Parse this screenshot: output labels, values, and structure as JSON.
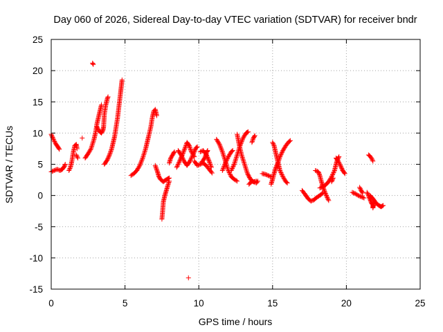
{
  "chart_data": {
    "type": "scatter",
    "title": "Day 060 of 2026, Sidereal Day-to-day VTEC variation (SDTVAR) for receiver bndr",
    "xlabel": "GPS time / hours",
    "ylabel": "SDTVAR / TECUs",
    "xlim": [
      0,
      25
    ],
    "ylim": [
      -15,
      25
    ],
    "x_ticks": [
      "0",
      "5",
      "10",
      "15",
      "20",
      "25"
    ],
    "y_ticks": [
      "25",
      "20",
      "15",
      "10",
      "5",
      "0",
      "-5",
      "-10",
      "-15"
    ],
    "grid": true,
    "marker": "+",
    "marker_color": "#ff0000",
    "segments": [
      {
        "points": [
          [
            0.0,
            3.8
          ],
          [
            0.2,
            4.0
          ],
          [
            0.4,
            4.2
          ],
          [
            0.6,
            4.0
          ],
          [
            0.75,
            4.2
          ],
          [
            0.9,
            4.7
          ],
          [
            0.95,
            5.0
          ]
        ]
      },
      {
        "points": [
          [
            0.0,
            9.8
          ],
          [
            0.15,
            9.0
          ],
          [
            0.3,
            8.3
          ],
          [
            0.45,
            7.8
          ],
          [
            0.55,
            7.4
          ]
        ]
      },
      {
        "points": [
          [
            1.2,
            4.0
          ],
          [
            1.3,
            4.5
          ],
          [
            1.4,
            5.5
          ],
          [
            1.5,
            7.0
          ],
          [
            1.6,
            8.0
          ],
          [
            1.7,
            8.2
          ],
          [
            1.75,
            7.5
          ]
        ]
      },
      {
        "points": [
          [
            1.7,
            6.5
          ],
          [
            1.8,
            6.0
          ]
        ]
      },
      {
        "points": [
          [
            2.1,
            9.2
          ]
        ]
      },
      {
        "points": [
          [
            2.8,
            21.2
          ],
          [
            2.85,
            21.0
          ]
        ]
      },
      {
        "points": [
          [
            2.3,
            6.0
          ],
          [
            2.5,
            6.7
          ],
          [
            2.7,
            7.5
          ],
          [
            2.9,
            9.0
          ],
          [
            3.0,
            10.0
          ],
          [
            3.1,
            11.5
          ],
          [
            3.2,
            12.5
          ],
          [
            3.3,
            13.5
          ],
          [
            3.4,
            14.5
          ]
        ]
      },
      {
        "points": [
          [
            3.1,
            11.0
          ],
          [
            3.2,
            10.5
          ],
          [
            3.3,
            10.2
          ],
          [
            3.4,
            10.0
          ],
          [
            3.5,
            10.4
          ],
          [
            3.55,
            11.0
          ],
          [
            3.6,
            13.0
          ],
          [
            3.7,
            14.5
          ],
          [
            3.8,
            15.5
          ],
          [
            3.85,
            15.8
          ]
        ]
      },
      {
        "points": [
          [
            3.6,
            5.0
          ],
          [
            3.8,
            5.7
          ],
          [
            3.95,
            6.5
          ],
          [
            4.1,
            7.5
          ],
          [
            4.2,
            8.5
          ],
          [
            4.3,
            9.5
          ],
          [
            4.4,
            11.0
          ],
          [
            4.5,
            12.5
          ],
          [
            4.6,
            14.5
          ],
          [
            4.7,
            16.5
          ],
          [
            4.75,
            17.5
          ],
          [
            4.8,
            18.5
          ]
        ]
      },
      {
        "points": [
          [
            5.4,
            3.2
          ],
          [
            5.6,
            3.5
          ],
          [
            5.8,
            4.0
          ],
          [
            6.0,
            4.8
          ],
          [
            6.2,
            6.0
          ],
          [
            6.4,
            7.5
          ],
          [
            6.5,
            8.5
          ],
          [
            6.6,
            9.5
          ],
          [
            6.75,
            11.0
          ],
          [
            6.85,
            12.5
          ],
          [
            6.95,
            13.5
          ],
          [
            7.05,
            13.8
          ],
          [
            7.15,
            12.8
          ]
        ]
      },
      {
        "points": [
          [
            7.05,
            4.8
          ],
          [
            7.2,
            3.8
          ],
          [
            7.3,
            3.0
          ],
          [
            7.4,
            2.6
          ],
          [
            7.5,
            2.4
          ],
          [
            7.6,
            2.2
          ],
          [
            7.7,
            2.4
          ],
          [
            7.85,
            2.6
          ],
          [
            8.0,
            2.8
          ]
        ]
      },
      {
        "points": [
          [
            7.5,
            -3.8
          ],
          [
            7.55,
            -2.5
          ],
          [
            7.6,
            -1.0
          ],
          [
            7.7,
            0.0
          ],
          [
            7.8,
            0.8
          ],
          [
            7.9,
            1.6
          ],
          [
            8.0,
            2.3
          ]
        ]
      },
      {
        "points": [
          [
            8.0,
            5.2
          ],
          [
            8.1,
            6.0
          ],
          [
            8.25,
            6.6
          ],
          [
            8.35,
            7.0
          ]
        ]
      },
      {
        "points": [
          [
            8.5,
            4.5
          ],
          [
            8.7,
            5.5
          ],
          [
            8.9,
            6.6
          ],
          [
            9.1,
            7.8
          ],
          [
            9.2,
            8.5
          ],
          [
            9.35,
            8.0
          ],
          [
            9.5,
            7.0
          ],
          [
            9.7,
            6.2
          ]
        ]
      },
      {
        "points": [
          [
            8.6,
            7.2
          ],
          [
            8.8,
            6.5
          ],
          [
            9.0,
            5.5
          ],
          [
            9.2,
            4.8
          ],
          [
            9.4,
            5.5
          ],
          [
            9.6,
            6.5
          ],
          [
            9.8,
            7.6
          ],
          [
            9.9,
            7.8
          ]
        ]
      },
      {
        "points": [
          [
            9.3,
            -13.2
          ]
        ]
      },
      {
        "points": [
          [
            9.7,
            5.5
          ],
          [
            9.9,
            4.8
          ],
          [
            10.1,
            5.0
          ],
          [
            10.3,
            5.2
          ],
          [
            10.5,
            4.8
          ],
          [
            10.7,
            4.2
          ],
          [
            10.9,
            3.6
          ]
        ]
      },
      {
        "points": [
          [
            10.1,
            7.0
          ],
          [
            10.3,
            7.2
          ],
          [
            10.5,
            6.6
          ],
          [
            10.7,
            5.5
          ],
          [
            10.85,
            4.5
          ]
        ]
      },
      {
        "points": [
          [
            10.2,
            5.3
          ],
          [
            10.4,
            6.0
          ],
          [
            10.55,
            7.0
          ],
          [
            10.6,
            7.2
          ]
        ]
      },
      {
        "points": [
          [
            11.2,
            9.0
          ],
          [
            11.4,
            8.2
          ],
          [
            11.6,
            7.0
          ],
          [
            11.8,
            5.5
          ],
          [
            12.0,
            4.0
          ],
          [
            12.2,
            3.0
          ],
          [
            12.4,
            2.6
          ],
          [
            12.6,
            2.3
          ]
        ]
      },
      {
        "points": [
          [
            11.6,
            4.0
          ],
          [
            11.8,
            5.2
          ],
          [
            12.0,
            6.2
          ],
          [
            12.2,
            7.0
          ],
          [
            12.3,
            7.2
          ]
        ]
      },
      {
        "points": [
          [
            12.2,
            4.0
          ],
          [
            12.4,
            5.0
          ],
          [
            12.6,
            6.5
          ],
          [
            12.8,
            8.0
          ],
          [
            13.0,
            9.2
          ],
          [
            13.2,
            10.0
          ],
          [
            13.35,
            10.2
          ]
        ]
      },
      {
        "points": [
          [
            12.6,
            9.8
          ],
          [
            12.75,
            8.0
          ],
          [
            12.9,
            6.5
          ],
          [
            13.1,
            5.0
          ],
          [
            13.3,
            3.5
          ],
          [
            13.5,
            2.6
          ],
          [
            13.7,
            2.2
          ],
          [
            13.9,
            2.3
          ]
        ]
      },
      {
        "points": [
          [
            13.4,
            1.8
          ],
          [
            13.6,
            2.3
          ],
          [
            13.9,
            2.0
          ],
          [
            14.0,
            2.3
          ]
        ]
      },
      {
        "points": [
          [
            13.6,
            8.5
          ],
          [
            13.7,
            9.2
          ],
          [
            13.8,
            9.6
          ]
        ]
      },
      {
        "points": [
          [
            14.3,
            3.5
          ],
          [
            14.5,
            3.4
          ],
          [
            14.7,
            3.2
          ],
          [
            14.9,
            3.0
          ]
        ]
      },
      {
        "points": [
          [
            15.0,
            8.5
          ],
          [
            15.1,
            8.0
          ],
          [
            15.2,
            7.0
          ],
          [
            15.3,
            6.0
          ],
          [
            15.4,
            5.0
          ],
          [
            15.5,
            4.0
          ],
          [
            15.7,
            3.0
          ],
          [
            15.9,
            2.2
          ],
          [
            16.0,
            2.0
          ]
        ]
      },
      {
        "points": [
          [
            14.9,
            1.8
          ],
          [
            15.0,
            2.6
          ],
          [
            15.1,
            3.5
          ],
          [
            15.2,
            4.3
          ],
          [
            15.3,
            4.9
          ],
          [
            15.4,
            5.5
          ],
          [
            15.5,
            6.2
          ],
          [
            15.7,
            7.2
          ],
          [
            15.9,
            8.0
          ],
          [
            16.1,
            8.6
          ],
          [
            16.2,
            8.8
          ]
        ]
      },
      {
        "points": [
          [
            17.0,
            0.8
          ],
          [
            17.2,
            0.2
          ],
          [
            17.4,
            -0.5
          ],
          [
            17.6,
            -0.9
          ],
          [
            17.8,
            -0.7
          ],
          [
            18.0,
            -0.3
          ],
          [
            18.2,
            0.0
          ],
          [
            18.4,
            0.4
          ]
        ]
      },
      {
        "points": [
          [
            17.9,
            4.0
          ],
          [
            18.1,
            3.8
          ],
          [
            18.2,
            3.2
          ],
          [
            18.3,
            2.3
          ],
          [
            18.4,
            1.5
          ],
          [
            18.55,
            0.5
          ],
          [
            18.7,
            -0.3
          ],
          [
            18.8,
            -0.8
          ]
        ]
      },
      {
        "points": [
          [
            18.2,
            1.2
          ],
          [
            18.4,
            1.4
          ],
          [
            18.6,
            1.7
          ],
          [
            18.8,
            2.2
          ],
          [
            19.0,
            3.0
          ],
          [
            19.2,
            4.0
          ],
          [
            19.3,
            5.0
          ],
          [
            19.4,
            5.8
          ],
          [
            19.5,
            6.2
          ]
        ]
      },
      {
        "points": [
          [
            19.0,
            2.2
          ],
          [
            19.1,
            2.8
          ]
        ]
      },
      {
        "points": [
          [
            19.3,
            6.0
          ],
          [
            19.45,
            5.5
          ],
          [
            19.6,
            4.8
          ],
          [
            19.75,
            4.0
          ],
          [
            19.9,
            3.5
          ]
        ]
      },
      {
        "points": [
          [
            20.4,
            0.5
          ],
          [
            20.6,
            0.3
          ],
          [
            20.8,
            0.0
          ],
          [
            21.0,
            -0.2
          ],
          [
            21.2,
            -0.4
          ]
        ]
      },
      {
        "points": [
          [
            20.9,
            1.3
          ],
          [
            21.0,
            0.8
          ],
          [
            21.1,
            0.4
          ]
        ]
      },
      {
        "points": [
          [
            21.5,
            6.5
          ],
          [
            21.6,
            6.3
          ],
          [
            21.7,
            6.0
          ],
          [
            21.8,
            5.5
          ]
        ]
      },
      {
        "points": [
          [
            21.4,
            0.5
          ],
          [
            21.5,
            0.0
          ],
          [
            21.6,
            -0.6
          ],
          [
            21.7,
            -1.2
          ],
          [
            21.8,
            -1.6
          ],
          [
            21.8,
            -2.0
          ],
          [
            21.9,
            -1.0
          ]
        ]
      },
      {
        "points": [
          [
            21.6,
            0.0
          ],
          [
            21.8,
            -0.5
          ],
          [
            22.0,
            -1.2
          ],
          [
            22.2,
            -1.6
          ],
          [
            22.35,
            -1.8
          ],
          [
            22.5,
            -1.6
          ]
        ]
      }
    ]
  }
}
